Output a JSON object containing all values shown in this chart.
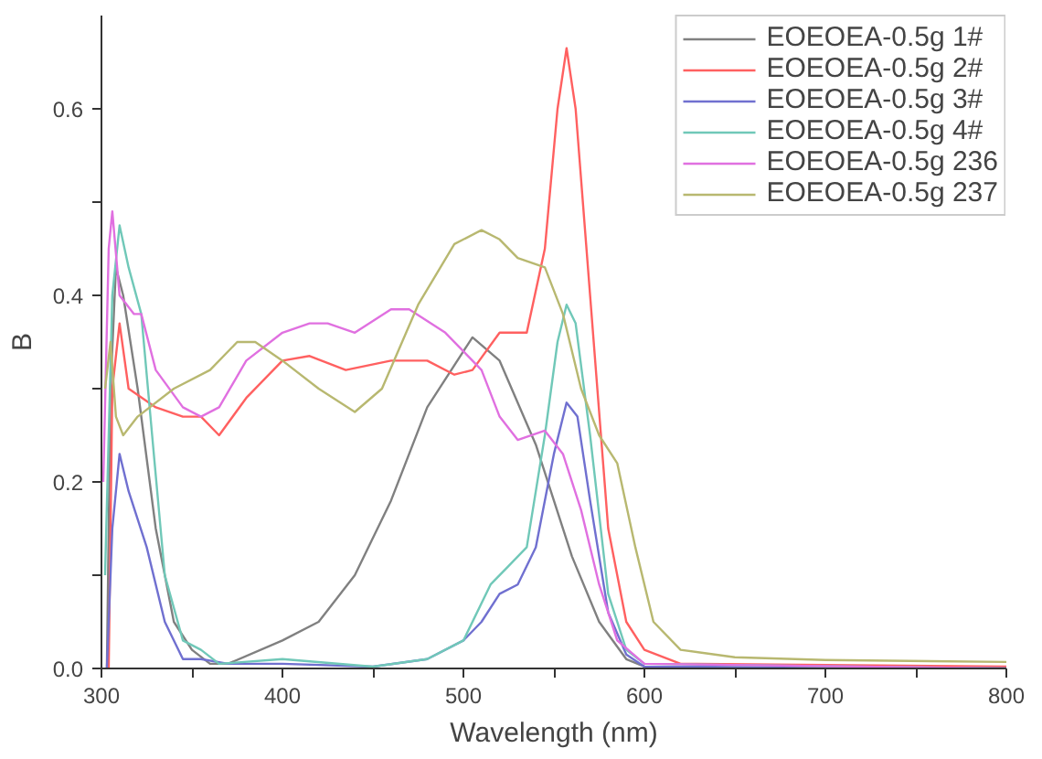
{
  "chart_data": {
    "type": "line",
    "xlabel": "Wavelength (nm)",
    "ylabel": "B",
    "xlim": [
      300,
      800
    ],
    "ylim": [
      0,
      0.7
    ],
    "xticks": [
      300,
      {
        "value": 350,
        "label": null
      },
      400,
      {
        "value": 450,
        "label": null
      },
      500,
      {
        "value": 550,
        "label": null
      },
      600,
      {
        "value": 650,
        "label": null
      },
      700,
      {
        "value": 750,
        "label": null
      },
      800
    ],
    "yticks": [
      {
        "value": 0,
        "label": "0.0"
      },
      {
        "value": 0.1,
        "label": null
      },
      0.2,
      {
        "value": 0.3,
        "label": null
      },
      0.4,
      {
        "value": 0.5,
        "label": null
      },
      0.6
    ],
    "grid": false,
    "legend": "top right",
    "marker": "none",
    "line_style": "solid",
    "series": [
      {
        "name": "EOEOEA-0.5g 1#",
        "color": "#808080",
        "x": [
          303,
          305,
          308,
          312,
          320,
          330,
          340,
          350,
          360,
          370,
          400,
          420,
          440,
          460,
          480,
          500,
          505,
          520,
          540,
          560,
          575,
          590,
          600,
          700,
          800
        ],
        "values": [
          0,
          0.3,
          0.43,
          0.4,
          0.3,
          0.15,
          0.05,
          0.02,
          0.005,
          0.005,
          0.03,
          0.05,
          0.1,
          0.18,
          0.28,
          0.34,
          0.355,
          0.33,
          0.24,
          0.12,
          0.05,
          0.01,
          0.002,
          0,
          0
        ]
      },
      {
        "name": "EOEOEA-0.5g 2#",
        "color": "#ff6060",
        "x": [
          304,
          306,
          310,
          315,
          330,
          345,
          355,
          365,
          380,
          400,
          415,
          435,
          460,
          480,
          495,
          505,
          520,
          535,
          545,
          552,
          557,
          562,
          570,
          580,
          590,
          600,
          620,
          800
        ],
        "values": [
          0,
          0.3,
          0.37,
          0.3,
          0.28,
          0.27,
          0.27,
          0.25,
          0.29,
          0.33,
          0.335,
          0.32,
          0.33,
          0.33,
          0.315,
          0.32,
          0.36,
          0.36,
          0.45,
          0.6,
          0.665,
          0.6,
          0.4,
          0.15,
          0.05,
          0.02,
          0.005,
          0.002
        ]
      },
      {
        "name": "EOEOEA-0.5g 3#",
        "color": "#7070d0",
        "x": [
          303,
          306,
          310,
          315,
          325,
          335,
          345,
          355,
          370,
          400,
          450,
          480,
          500,
          510,
          520,
          530,
          540,
          550,
          557,
          563,
          570,
          580,
          590,
          600,
          800
        ],
        "values": [
          0,
          0.15,
          0.23,
          0.19,
          0.13,
          0.05,
          0.01,
          0.01,
          0.005,
          0.005,
          0.002,
          0.01,
          0.03,
          0.05,
          0.08,
          0.09,
          0.13,
          0.23,
          0.285,
          0.27,
          0.18,
          0.06,
          0.015,
          0.002,
          0
        ]
      },
      {
        "name": "EOEOEA-0.5g 4#",
        "color": "#70c8b8",
        "x": [
          302,
          306,
          310,
          315,
          322,
          328,
          335,
          345,
          355,
          365,
          400,
          450,
          480,
          500,
          515,
          525,
          535,
          545,
          552,
          557,
          562,
          570,
          580,
          590,
          600,
          800
        ],
        "values": [
          0.1,
          0.4,
          0.475,
          0.43,
          0.38,
          0.25,
          0.1,
          0.03,
          0.02,
          0.005,
          0.01,
          0.002,
          0.01,
          0.03,
          0.09,
          0.11,
          0.13,
          0.25,
          0.35,
          0.39,
          0.37,
          0.25,
          0.08,
          0.02,
          0.005,
          0
        ]
      },
      {
        "name": "EOEOEA-0.5g 236",
        "color": "#e070e0",
        "x": [
          301,
          304,
          306,
          310,
          318,
          322,
          330,
          345,
          355,
          365,
          380,
          400,
          415,
          425,
          440,
          460,
          470,
          490,
          510,
          520,
          530,
          545,
          555,
          565,
          575,
          585,
          600,
          800
        ],
        "values": [
          0.2,
          0.45,
          0.49,
          0.4,
          0.38,
          0.38,
          0.32,
          0.28,
          0.27,
          0.28,
          0.33,
          0.36,
          0.37,
          0.37,
          0.36,
          0.385,
          0.385,
          0.36,
          0.32,
          0.27,
          0.245,
          0.255,
          0.23,
          0.17,
          0.09,
          0.03,
          0.005,
          0
        ]
      },
      {
        "name": "EOEOEA-0.5g 237",
        "color": "#b8b870",
        "x": [
          302,
          305,
          308,
          312,
          320,
          340,
          360,
          375,
          385,
          400,
          420,
          440,
          455,
          475,
          495,
          510,
          520,
          530,
          545,
          555,
          565,
          575,
          585,
          595,
          605,
          620,
          650,
          700,
          800
        ],
        "values": [
          0.3,
          0.35,
          0.27,
          0.25,
          0.27,
          0.3,
          0.32,
          0.35,
          0.35,
          0.33,
          0.3,
          0.275,
          0.3,
          0.39,
          0.455,
          0.47,
          0.46,
          0.44,
          0.43,
          0.38,
          0.3,
          0.25,
          0.22,
          0.13,
          0.05,
          0.02,
          0.012,
          0.009,
          0.007
        ]
      }
    ]
  }
}
